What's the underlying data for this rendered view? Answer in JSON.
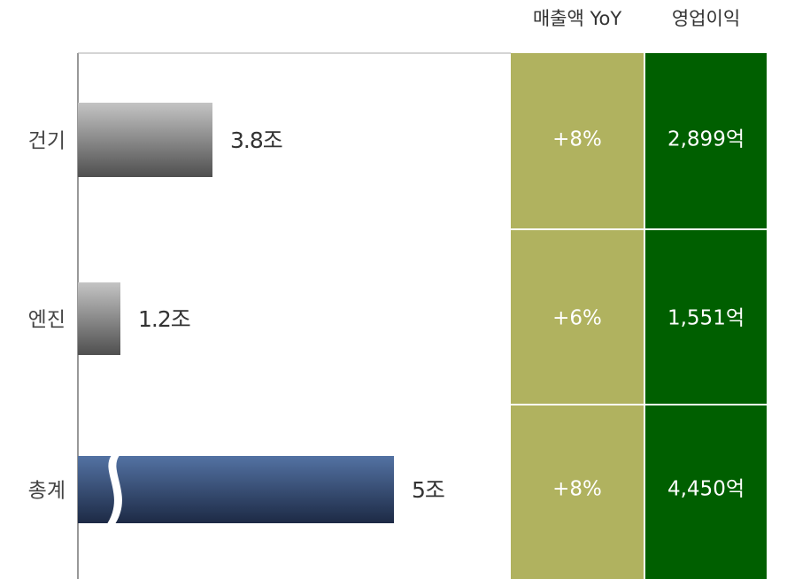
{
  "chart_data": {
    "type": "bar",
    "categories": [
      "건기",
      "엔진",
      "총계"
    ],
    "values": [
      3.8,
      1.2,
      5
    ],
    "value_labels": [
      "3.8조",
      "1.2조",
      "5조"
    ],
    "broken": [
      false,
      false,
      true
    ],
    "colors": [
      [
        "#c4c4c4",
        "#4f4f4f"
      ],
      [
        "#c4c4c4",
        "#4f4f4f"
      ],
      [
        "#5372a3",
        "#1d2a45"
      ]
    ],
    "columns": [
      {
        "header": "매출액 YoY",
        "color": "#b0b25f",
        "values": [
          "+8%",
          "+6%",
          "+8%"
        ]
      },
      {
        "header": "영업이익",
        "color": "#005f00",
        "values": [
          "2,899억",
          "1,551억",
          "4,450억"
        ]
      }
    ]
  }
}
